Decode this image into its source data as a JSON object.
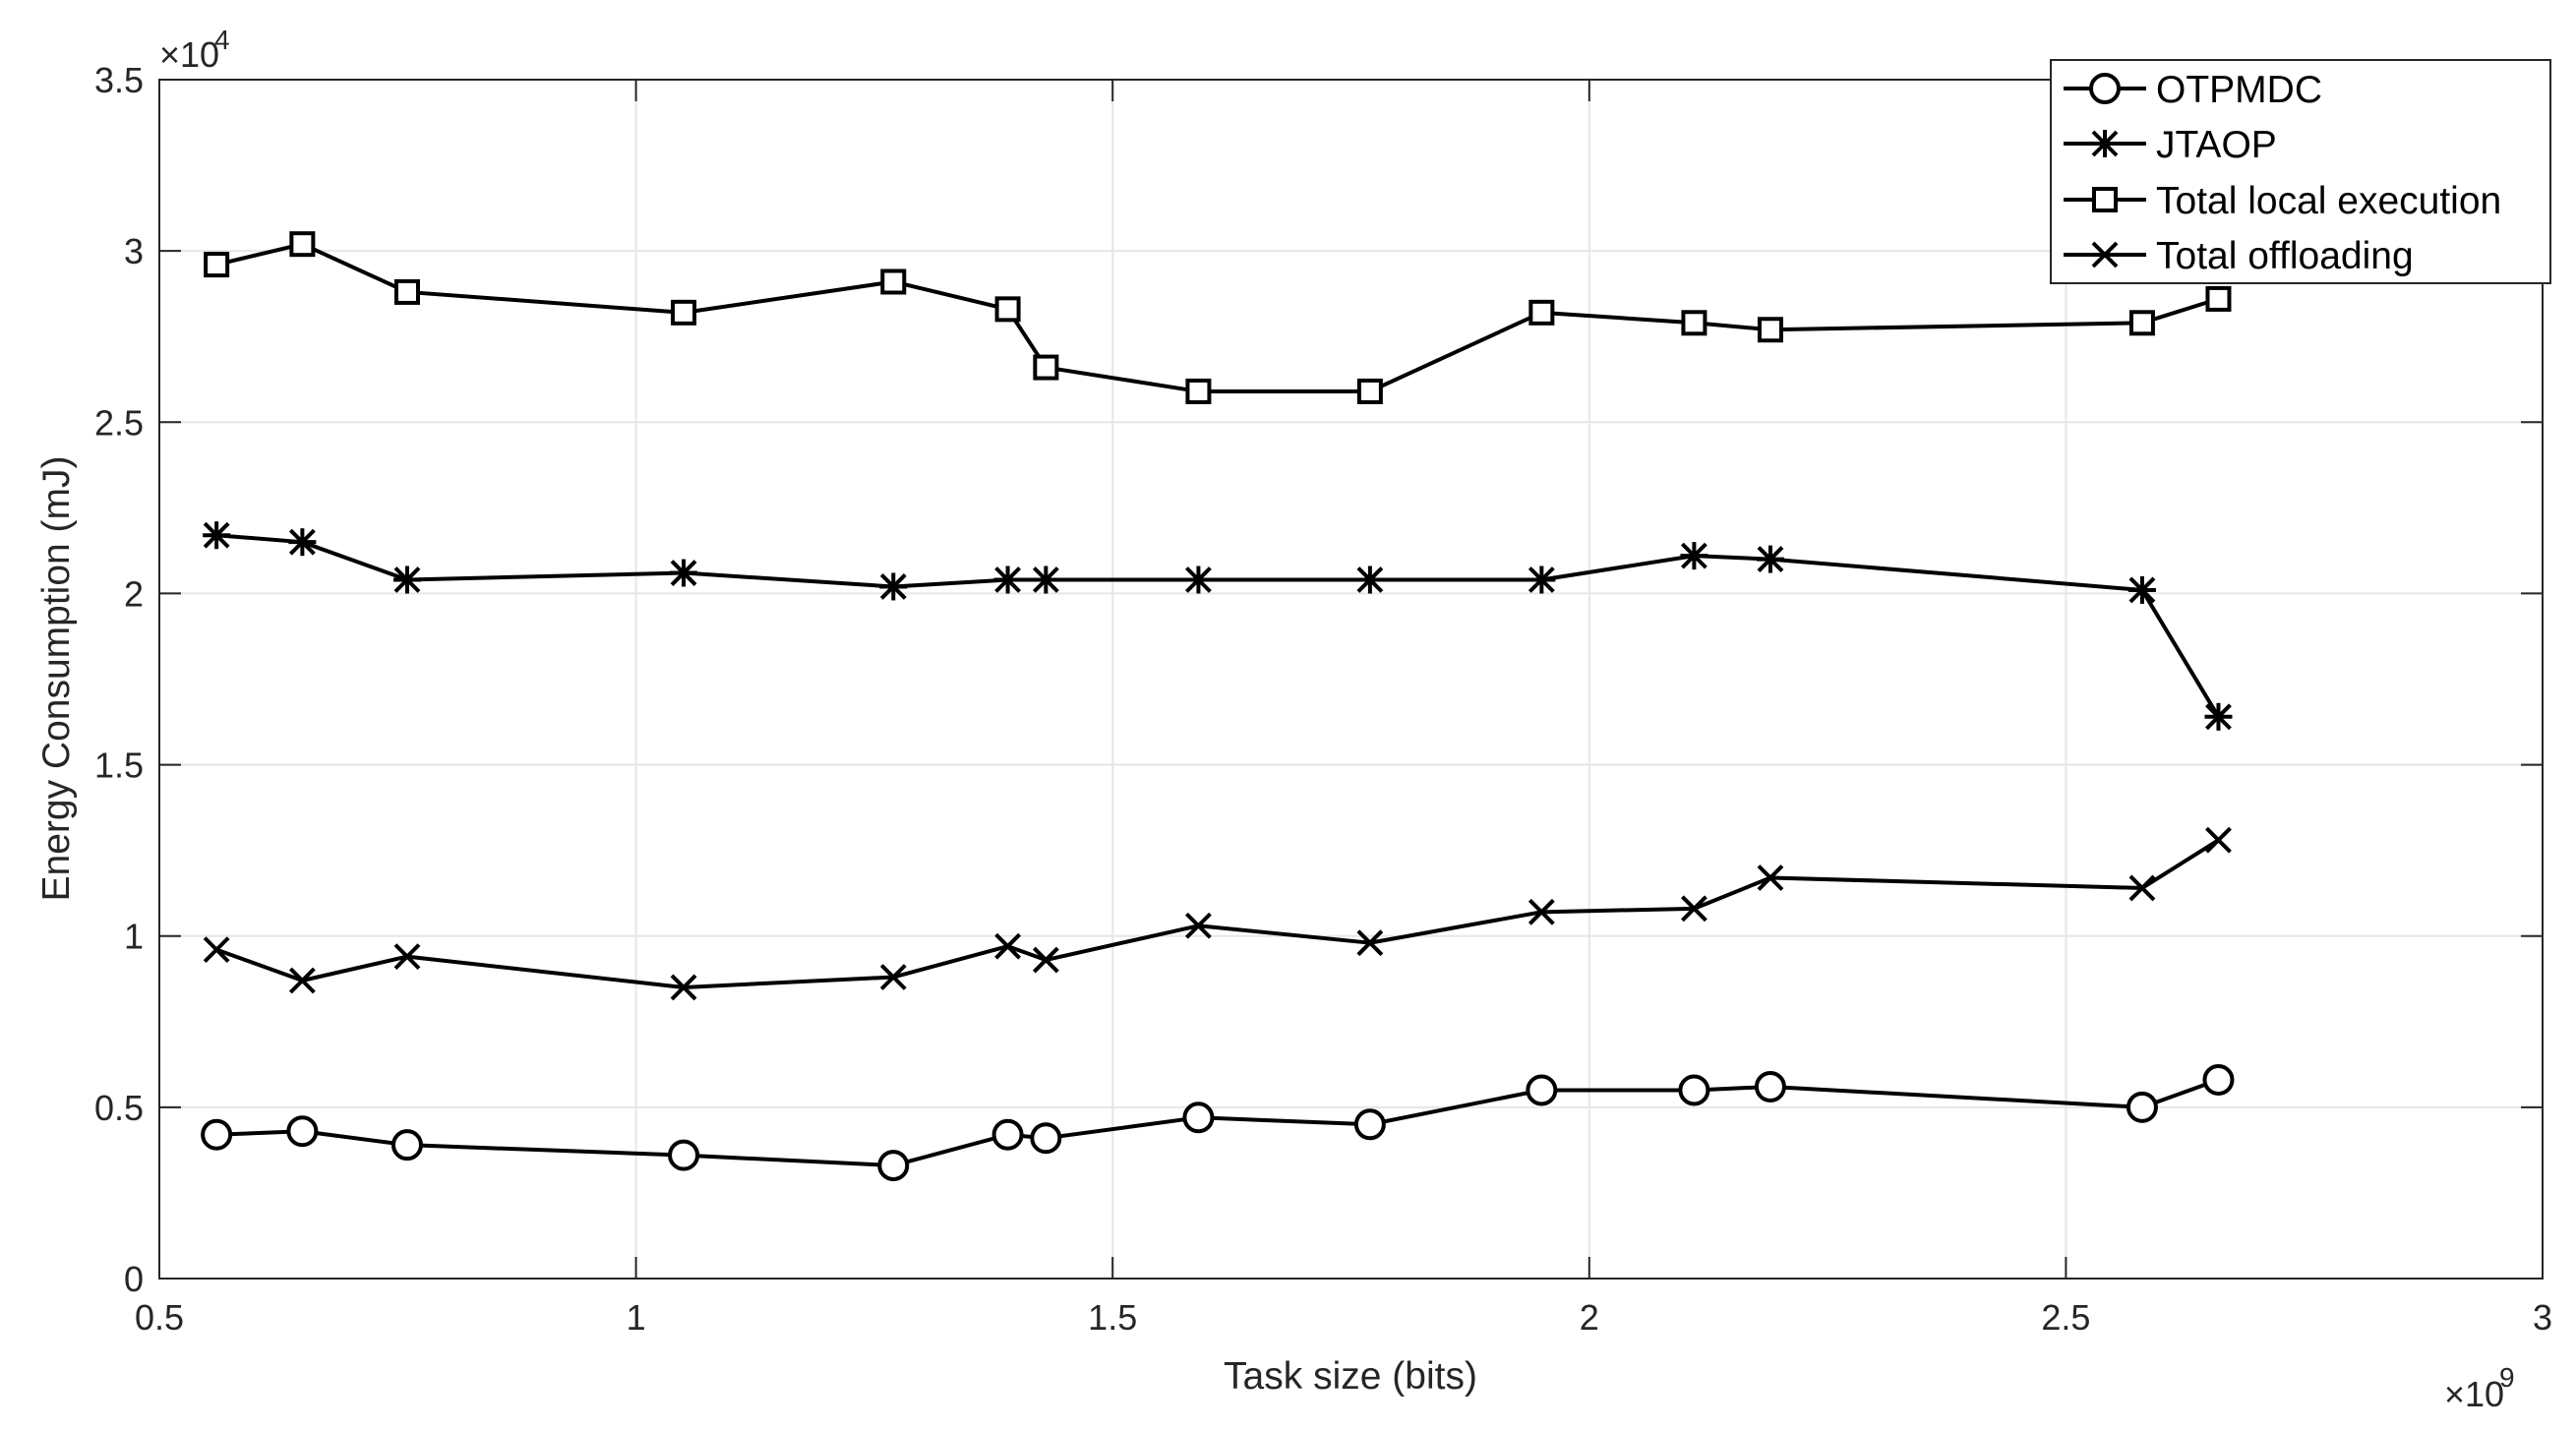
{
  "chart_data": {
    "type": "line",
    "title": "",
    "xlabel": "Task size (bits)",
    "ylabel": "Energy Consumption (mJ)",
    "x_multiplier": "×10",
    "x_exponent": "9",
    "y_multiplier": "×10",
    "y_exponent": "4",
    "xlim": [
      0.5,
      3
    ],
    "ylim": [
      0,
      3.5
    ],
    "xticks": [
      "0.5",
      "1",
      "1.5",
      "2",
      "2.5",
      "3"
    ],
    "yticks": [
      "0",
      "0.5",
      "1",
      "1.5",
      "2",
      "2.5",
      "3",
      "3.5"
    ],
    "grid": true,
    "legend_position": "top-right",
    "x": [
      0.56,
      0.65,
      0.76,
      1.05,
      1.27,
      1.39,
      1.43,
      1.59,
      1.77,
      1.95,
      2.11,
      2.19,
      2.58,
      2.66
    ],
    "series": [
      {
        "name": "OTPMDC",
        "marker": "circle",
        "values": [
          0.42,
          0.43,
          0.39,
          0.36,
          0.33,
          0.42,
          0.41,
          0.47,
          0.45,
          0.55,
          0.55,
          0.56,
          0.5,
          0.58
        ]
      },
      {
        "name": "JTAOP",
        "marker": "asterisk",
        "values": [
          2.17,
          2.15,
          2.04,
          2.06,
          2.02,
          2.04,
          2.04,
          2.04,
          2.04,
          2.04,
          2.11,
          2.1,
          2.01,
          1.64
        ]
      },
      {
        "name": "Total local execution",
        "marker": "square",
        "values": [
          2.96,
          3.02,
          2.88,
          2.82,
          2.91,
          2.83,
          2.66,
          2.59,
          2.59,
          2.82,
          2.79,
          2.77,
          2.79,
          2.86
        ]
      },
      {
        "name": "Total offloading",
        "marker": "cross",
        "values": [
          0.96,
          0.87,
          0.94,
          0.85,
          0.88,
          0.97,
          0.93,
          1.03,
          0.98,
          1.07,
          1.08,
          1.17,
          1.14,
          1.28
        ]
      }
    ]
  },
  "colors": {
    "line": "#000000",
    "grid": "#e6e6e6",
    "axis": "#262626",
    "background": "#ffffff"
  }
}
